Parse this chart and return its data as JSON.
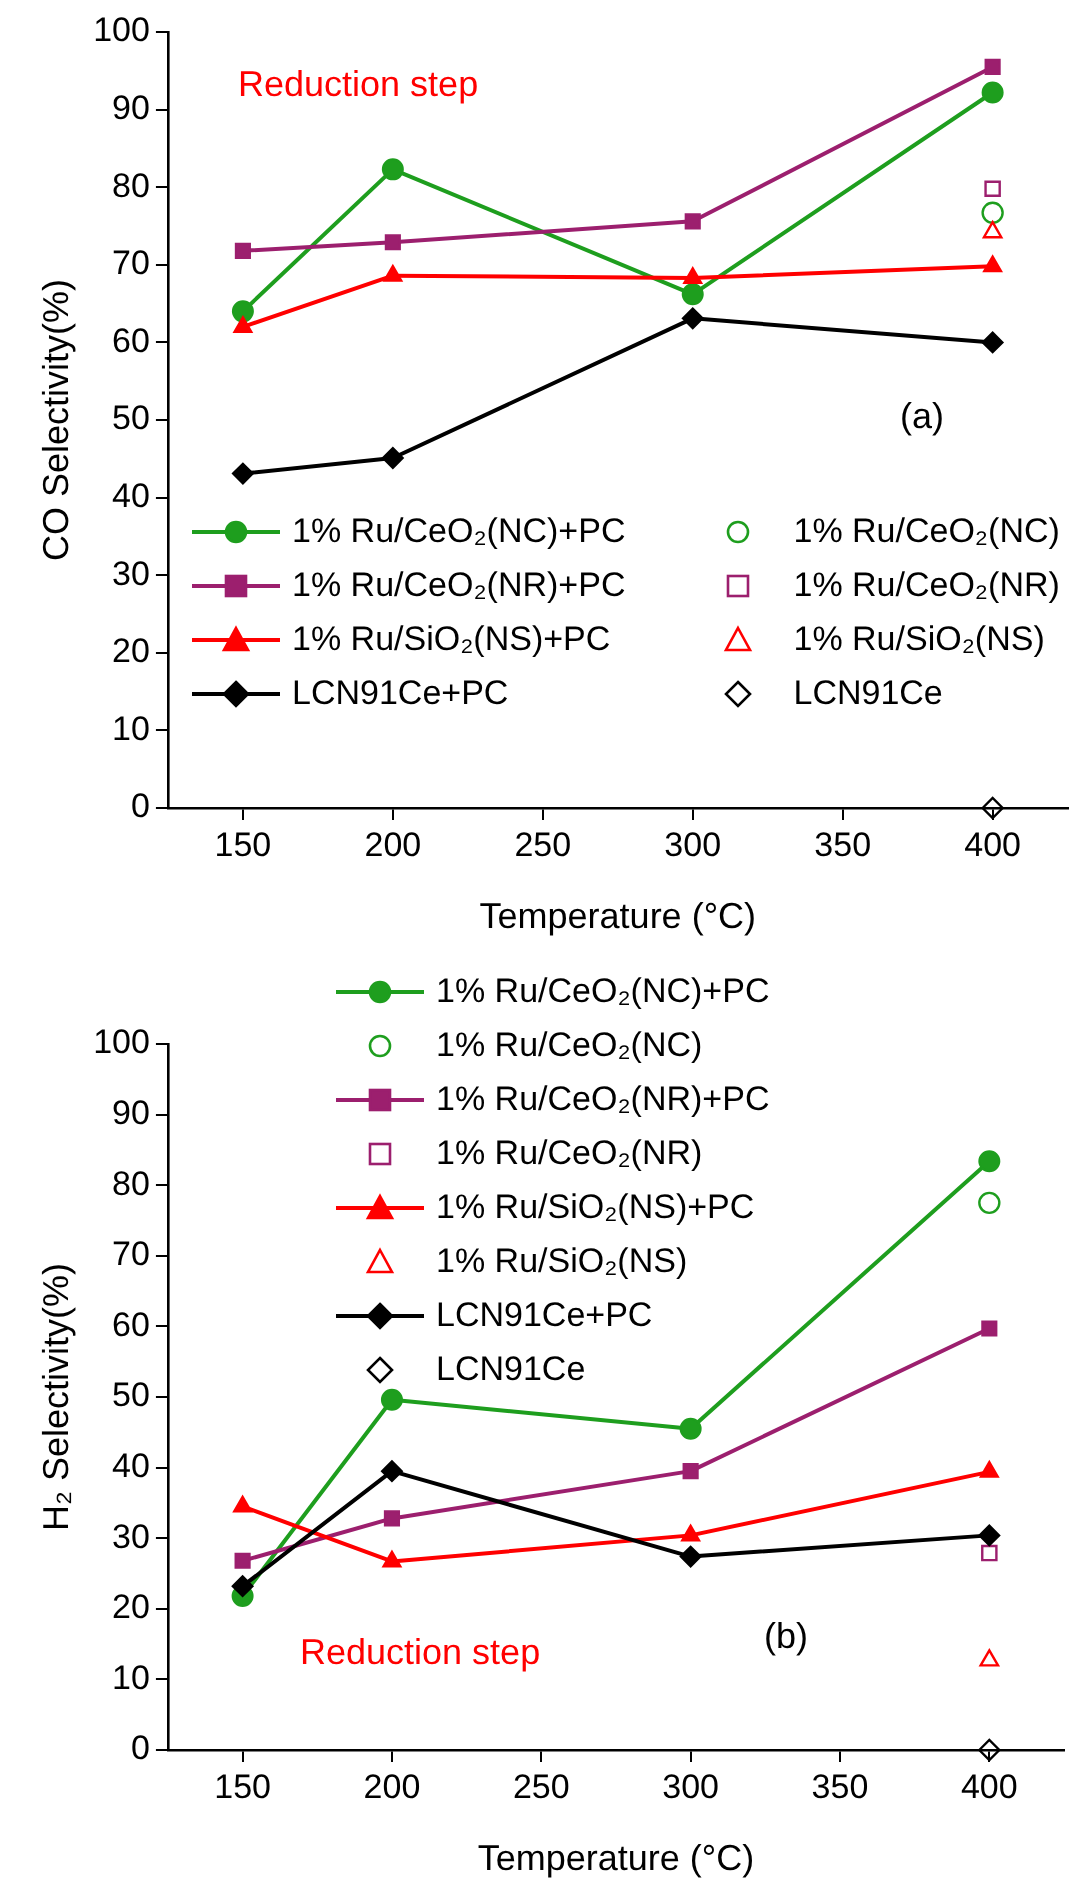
{
  "chart_data": [
    {
      "type": "line",
      "xlabel": "Temperature (°C)",
      "ylabel": "CO Selectivity(%)",
      "xlim": [
        125,
        425
      ],
      "xticks": [
        150,
        200,
        250,
        300,
        350,
        400
      ],
      "ylim": [
        0,
        100
      ],
      "yticks": [
        0,
        10,
        20,
        30,
        40,
        50,
        60,
        70,
        80,
        90,
        100
      ],
      "grid": false,
      "legend": "bottom left",
      "annotations": [
        "Reduction step",
        "(a)"
      ],
      "series": [
        {
          "name": "1% Ru/CeO₂(NC)+PC",
          "type": "line",
          "marker": "circle",
          "color": "#1e9e1e",
          "x": [
            150,
            200,
            300,
            400
          ],
          "values": [
            64,
            82.3,
            66.2,
            92.2
          ]
        },
        {
          "name": "1% Ru/CeO₂(NC)",
          "type": "scatter",
          "marker": "circle",
          "color": "#1e9e1e",
          "x": [
            400
          ],
          "values": [
            76.7
          ]
        },
        {
          "name": "1% Ru/CeO₂(NR)+PC",
          "type": "line",
          "marker": "square",
          "color": "#9c1f6e",
          "x": [
            150,
            200,
            300,
            400
          ],
          "values": [
            71.8,
            72.9,
            75.6,
            95.5
          ]
        },
        {
          "name": "1% Ru/CeO₂(NR)",
          "type": "scatter",
          "marker": "square",
          "color": "#9c1f6e",
          "x": [
            400
          ],
          "values": [
            79.8
          ]
        },
        {
          "name": "1% Ru/SiO₂(NS)+PC",
          "type": "line",
          "marker": "triangle",
          "color": "#ff0000",
          "x": [
            150,
            200,
            300,
            400
          ],
          "values": [
            62,
            68.6,
            68.3,
            69.8
          ]
        },
        {
          "name": "1% Ru/SiO₂(NS)",
          "type": "scatter",
          "marker": "triangle",
          "color": "#ff0000",
          "x": [
            400
          ],
          "values": [
            74.2
          ]
        },
        {
          "name": "LCN91Ce+PC",
          "type": "line",
          "marker": "diamond",
          "color": "#000000",
          "x": [
            150,
            200,
            300,
            400
          ],
          "values": [
            43.1,
            45.1,
            63.1,
            60
          ]
        },
        {
          "name": "LCN91Ce",
          "type": "scatter",
          "marker": "diamond",
          "color": "#000000",
          "x": [
            400
          ],
          "values": [
            0
          ]
        }
      ]
    },
    {
      "type": "line",
      "xlabel": "Temperature (°C)",
      "ylabel": "H₂ Selectivity(%)",
      "xlim": [
        125,
        425
      ],
      "xticks": [
        150,
        200,
        250,
        300,
        350,
        400
      ],
      "ylim": [
        0,
        100
      ],
      "yticks": [
        0,
        10,
        20,
        30,
        40,
        50,
        60,
        70,
        80,
        90,
        100
      ],
      "grid": false,
      "legend": "top",
      "annotations": [
        "Reduction step",
        "(b)"
      ],
      "series": [
        {
          "name": "1% Ru/CeO₂(NC)+PC",
          "type": "line",
          "marker": "circle",
          "color": "#1e9e1e",
          "x": [
            150,
            200,
            300,
            400
          ],
          "values": [
            21.8,
            49.6,
            45.5,
            83.4
          ]
        },
        {
          "name": "1% Ru/CeO₂(NC)",
          "type": "scatter",
          "marker": "circle",
          "color": "#1e9e1e",
          "x": [
            400
          ],
          "values": [
            77.5
          ]
        },
        {
          "name": "1% Ru/CeO₂(NR)+PC",
          "type": "line",
          "marker": "square",
          "color": "#9c1f6e",
          "x": [
            150,
            200,
            300,
            400
          ],
          "values": [
            26.8,
            32.8,
            39.5,
            59.7
          ]
        },
        {
          "name": "1% Ru/CeO₂(NR)",
          "type": "scatter",
          "marker": "square",
          "color": "#9c1f6e",
          "x": [
            400
          ],
          "values": [
            27.9
          ]
        },
        {
          "name": "1% Ru/SiO₂(NS)+PC",
          "type": "line",
          "marker": "triangle",
          "color": "#ff0000",
          "x": [
            150,
            200,
            300,
            400
          ],
          "values": [
            34.5,
            26.7,
            30.4,
            39.4
          ]
        },
        {
          "name": "1% Ru/SiO₂(NS)",
          "type": "scatter",
          "marker": "triangle",
          "color": "#ff0000",
          "x": [
            400
          ],
          "values": [
            12.7
          ]
        },
        {
          "name": "LCN91Ce+PC",
          "type": "line",
          "marker": "diamond",
          "color": "#000000",
          "x": [
            150,
            200,
            300,
            400
          ],
          "values": [
            23.2,
            39.5,
            27.4,
            30.4
          ]
        },
        {
          "name": "LCN91Ce",
          "type": "scatter",
          "marker": "diamond",
          "color": "#000000",
          "x": [
            400
          ],
          "values": [
            0
          ]
        }
      ]
    }
  ]
}
